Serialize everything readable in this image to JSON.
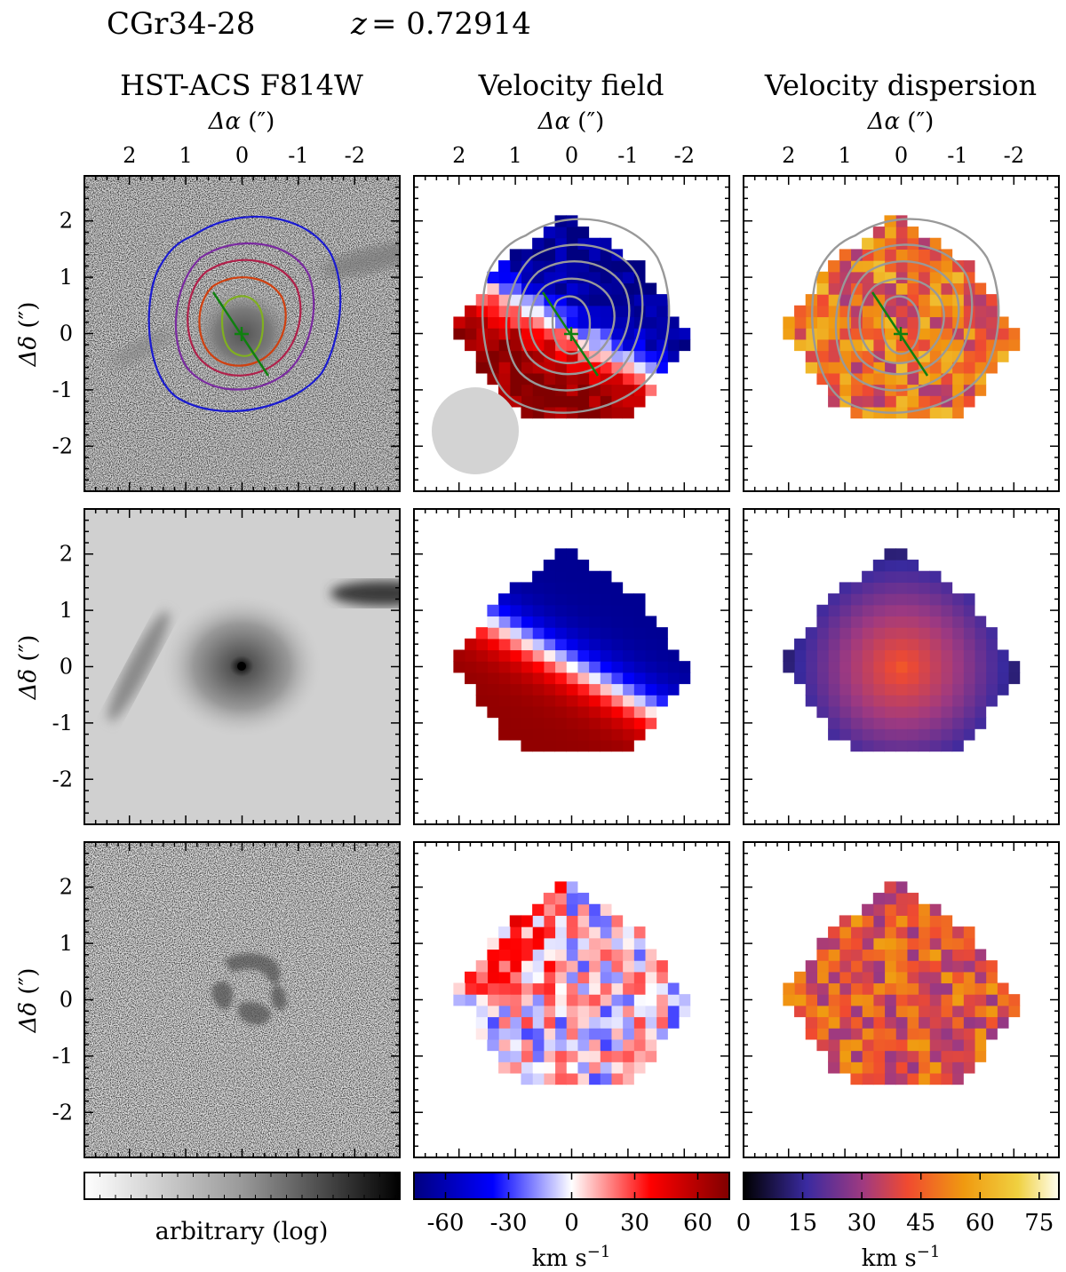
{
  "header": {
    "object_name": "CGr34-28",
    "redshift_var": "z",
    "redshift_eq": "= 0.72914"
  },
  "columns": [
    {
      "title": "HST-ACS F814W"
    },
    {
      "title": "Velocity field"
    },
    {
      "title": "Velocity dispersion"
    }
  ],
  "axes": {
    "x_label_symbol": "Δα",
    "x_label_unit": "(″)",
    "y_label_symbol": "Δδ",
    "y_label_unit": "(″)",
    "x_ticks": [
      "2",
      "1",
      "0",
      "-1",
      "-2"
    ],
    "y_ticks": [
      "2",
      "1",
      "0",
      "-1",
      "-2"
    ]
  },
  "chart_data": [
    {
      "type": "heatmap",
      "panel": "HST-ACS F814W observed image with flux contours",
      "colormap": "greys",
      "x_range_arcsec": [
        2.8,
        -2.8
      ],
      "y_range_arcsec": [
        -2.8,
        2.8
      ],
      "contour_colors": [
        "#1a1ad0",
        "#7a2aa0",
        "#b0204a",
        "#d04010",
        "#80b020"
      ],
      "major_axis": {
        "from": [
          0.5,
          0.75
        ],
        "to": [
          -0.5,
          -0.75
        ],
        "color": "#108010"
      },
      "center_marker": [
        0,
        0
      ]
    },
    {
      "type": "heatmap",
      "panel": "Velocity field (observed)",
      "colormap": "blue-white-red",
      "flux_contour_color": "#999999",
      "psf_disc_color": "#d3d3d3"
    },
    {
      "type": "heatmap",
      "panel": "Velocity dispersion (observed)",
      "colormap": "cmr-hot",
      "flux_contour_color": "#999999"
    },
    {
      "type": "heatmap",
      "panel": "HST model image",
      "colormap": "greys"
    },
    {
      "type": "heatmap",
      "panel": "Velocity field model",
      "colormap": "blue-white-red"
    },
    {
      "type": "heatmap",
      "panel": "Velocity dispersion model",
      "colormap": "cmr-hot"
    },
    {
      "type": "heatmap",
      "panel": "HST residual image",
      "colormap": "greys"
    },
    {
      "type": "heatmap",
      "panel": "Velocity field residual",
      "colormap": "blue-white-red"
    },
    {
      "type": "heatmap",
      "panel": "Velocity dispersion residual",
      "colormap": "cmr-hot"
    }
  ],
  "colorbars": [
    {
      "label": "arbitrary (log)",
      "ticks": [],
      "colors": [
        "#ffffff",
        "#000000"
      ]
    },
    {
      "label": "km s",
      "label_sup": "−1",
      "ticks": [
        "-60",
        "-30",
        "0",
        "30",
        "60"
      ],
      "tick_values": [
        -60,
        -30,
        0,
        30,
        60
      ],
      "range": [
        -75,
        75
      ],
      "colors": [
        "#000080",
        "#0000ff",
        "#ffffff",
        "#ff0000",
        "#800000"
      ]
    },
    {
      "label": "km s",
      "label_sup": "−1",
      "ticks": [
        "0",
        "15",
        "30",
        "45",
        "60",
        "75"
      ],
      "tick_values": [
        0,
        15,
        30,
        45,
        60,
        75
      ],
      "range": [
        0,
        80
      ],
      "colors": [
        "#000000",
        "#3a2aa0",
        "#a03a80",
        "#f04a30",
        "#f09a10",
        "#f0d040",
        "#fffff0"
      ]
    }
  ]
}
